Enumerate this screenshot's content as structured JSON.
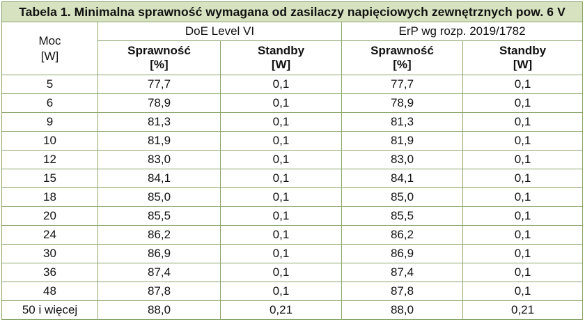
{
  "title": "Tabela 1. Minimalna sprawność wymagana od zasilaczy napięciowych zewnętrznych pow. 6 V",
  "moc_header": {
    "line1": "Moc",
    "line2": "[W]"
  },
  "groups": [
    "DoE Level VI",
    "ErP wg rozp. 2019/1782"
  ],
  "subheaders": [
    {
      "line1": "Sprawność",
      "line2": "[%]"
    },
    {
      "line1": "Standby",
      "line2": "[W]"
    },
    {
      "line1": "Sprawność",
      "line2": "[%]"
    },
    {
      "line1": "Standby",
      "line2": "[W]"
    }
  ],
  "rows": [
    [
      "5",
      "77,7",
      "0,1",
      "77,7",
      "0,1"
    ],
    [
      "6",
      "78,9",
      "0,1",
      "78,9",
      "0,1"
    ],
    [
      "9",
      "81,3",
      "0,1",
      "81,3",
      "0,1"
    ],
    [
      "10",
      "81,9",
      "0,1",
      "81,9",
      "0,1"
    ],
    [
      "12",
      "83,0",
      "0,1",
      "83,0",
      "0,1"
    ],
    [
      "15",
      "84,1",
      "0,1",
      "84,1",
      "0,1"
    ],
    [
      "18",
      "85,0",
      "0,1",
      "85,0",
      "0,1"
    ],
    [
      "20",
      "85,5",
      "0,1",
      "85,5",
      "0,1"
    ],
    [
      "24",
      "86,2",
      "0,1",
      "86,2",
      "0,1"
    ],
    [
      "30",
      "86,9",
      "0,1",
      "86,9",
      "0,1"
    ],
    [
      "36",
      "87,4",
      "0,1",
      "87,4",
      "0,1"
    ],
    [
      "48",
      "87,8",
      "0,1",
      "87,8",
      "0,1"
    ],
    [
      "50 i więcej",
      "88,0",
      "0,21",
      "88,0",
      "0,21"
    ]
  ],
  "colors": {
    "title_bg": "#d7e3c0",
    "border": "#8aa66a"
  }
}
